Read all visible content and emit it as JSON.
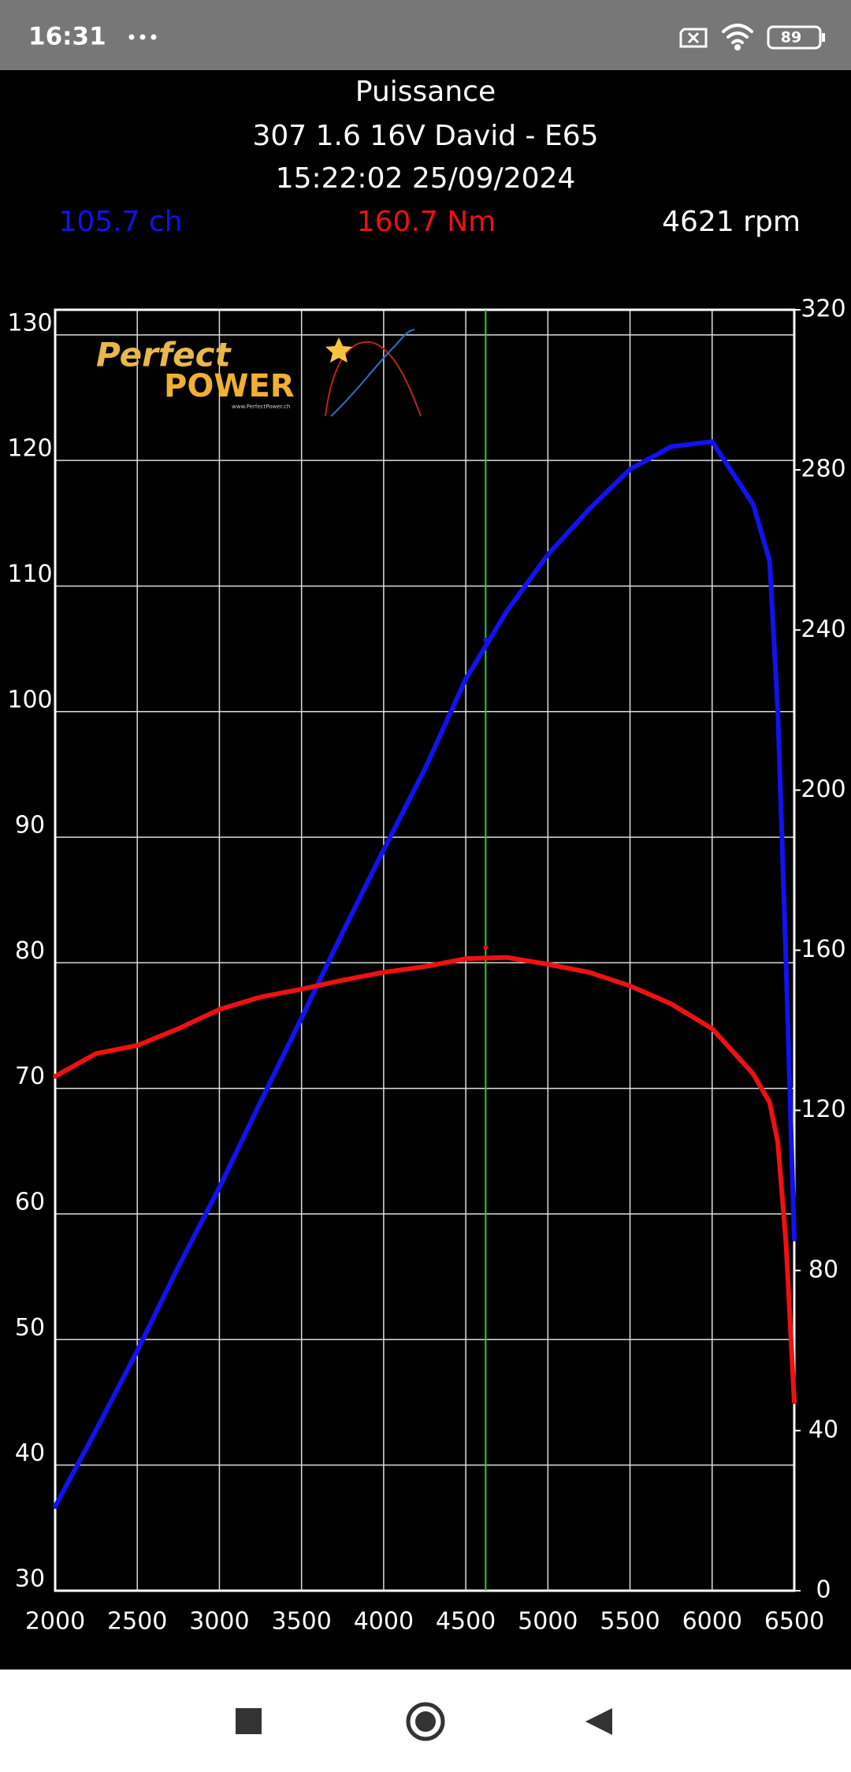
{
  "status_bar": {
    "time": "16:31",
    "battery": "89"
  },
  "chart_data": {
    "type": "line",
    "title": "Puissance",
    "subtitle": [
      "307 1.6 16V David - E65",
      "15:22:02 25/09/2024"
    ],
    "readout": {
      "values": [
        105.7,
        160.7,
        4621
      ],
      "value_labels": [
        "105.7 ch",
        "160.7 Nm",
        "4621 rpm"
      ]
    },
    "logo": {
      "line1": "Perfect",
      "line2": "POWER",
      "url": "www.PerfectPower.ch"
    },
    "x": [
      2000,
      2250,
      2500,
      2750,
      3000,
      3250,
      3500,
      3750,
      4000,
      4250,
      4500,
      4750,
      5000,
      5250,
      5500,
      5750,
      6000,
      6250,
      6350,
      6400,
      6450,
      6500
    ],
    "series": [
      {
        "name": "ch",
        "color": "#1212ee",
        "values": [
          36.7,
          42.8,
          49.1,
          55.8,
          62.1,
          68.9,
          75.6,
          82.4,
          89.0,
          95.4,
          102.6,
          108.0,
          112.5,
          116.1,
          119.3,
          121.1,
          121.5,
          116.5,
          112,
          100,
          80,
          58
        ]
      },
      {
        "name": "Nm",
        "color": "#ee1111",
        "axis": "y2",
        "values": [
          128.5,
          134.2,
          136.2,
          140.4,
          145.2,
          148.3,
          150.3,
          152.5,
          154.5,
          155.9,
          157.9,
          158.2,
          156.5,
          154.5,
          151.1,
          146.6,
          140.4,
          129.1,
          122,
          112,
          86.7,
          47.2
        ]
      }
    ],
    "cursor_color": "#33cc33",
    "xlim": [
      2000,
      6500
    ],
    "ylim": [
      30,
      132
    ],
    "y2lim": [
      0,
      320
    ],
    "xticks": [
      2000,
      2500,
      3000,
      3500,
      4000,
      4500,
      5000,
      5500,
      6000,
      6500
    ],
    "yticks": [
      30,
      40,
      50,
      60,
      70,
      80,
      90,
      100,
      110,
      120,
      130
    ],
    "y2ticks": [
      0,
      40,
      80,
      120,
      160,
      200,
      240,
      280,
      320
    ],
    "grid": true
  }
}
